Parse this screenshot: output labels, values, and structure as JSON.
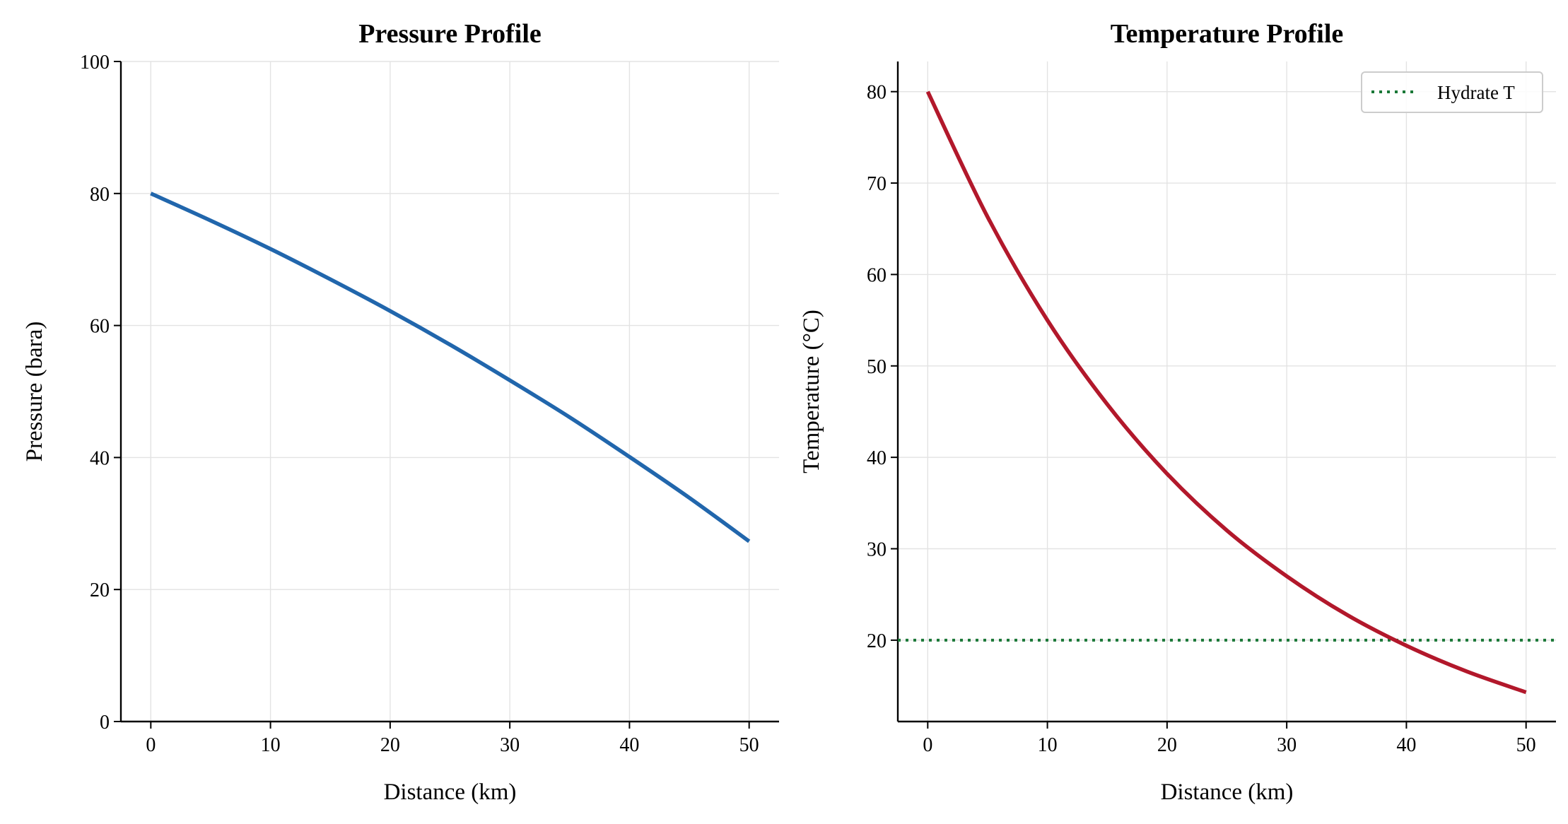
{
  "chart_data": [
    {
      "type": "line",
      "title": "Pressure Profile",
      "xlabel": "Distance (km)",
      "ylabel": "Pressure (bara)",
      "xlim": [
        -2.5,
        52.5
      ],
      "ylim": [
        0,
        100
      ],
      "xticks": [
        0,
        10,
        20,
        30,
        40,
        50
      ],
      "yticks": [
        0,
        20,
        40,
        60,
        80,
        100
      ],
      "grid": true,
      "series": [
        {
          "color": "#2166ac",
          "x": [
            0,
            5,
            10,
            15,
            20,
            25,
            30,
            35,
            40,
            45,
            50
          ],
          "y": [
            80,
            75.9,
            71.6,
            67.0,
            62.2,
            57.1,
            51.7,
            46.1,
            40.1,
            33.9,
            27.3
          ]
        }
      ]
    },
    {
      "type": "line",
      "title": "Temperature Profile",
      "xlabel": "Distance (km)",
      "ylabel": "Temperature (°C)",
      "xlim": [
        -2.5,
        52.5
      ],
      "ylim": [
        11.1,
        83.3
      ],
      "xticks": [
        0,
        10,
        20,
        30,
        40,
        50
      ],
      "yticks": [
        20,
        30,
        40,
        50,
        60,
        70,
        80
      ],
      "grid": true,
      "legend_position": "top-right",
      "series": [
        {
          "color": "#b2182b",
          "x": [
            0,
            5,
            10,
            15,
            20,
            25,
            30,
            35,
            40,
            45,
            50
          ],
          "y": [
            80,
            66.3,
            55.0,
            45.8,
            38.2,
            32.0,
            27.0,
            22.8,
            19.4,
            16.6,
            14.3
          ]
        }
      ],
      "hlines": [
        {
          "name": "Hydrate T",
          "y": 20,
          "color": "#1a7837",
          "style": "dotted"
        }
      ]
    }
  ]
}
